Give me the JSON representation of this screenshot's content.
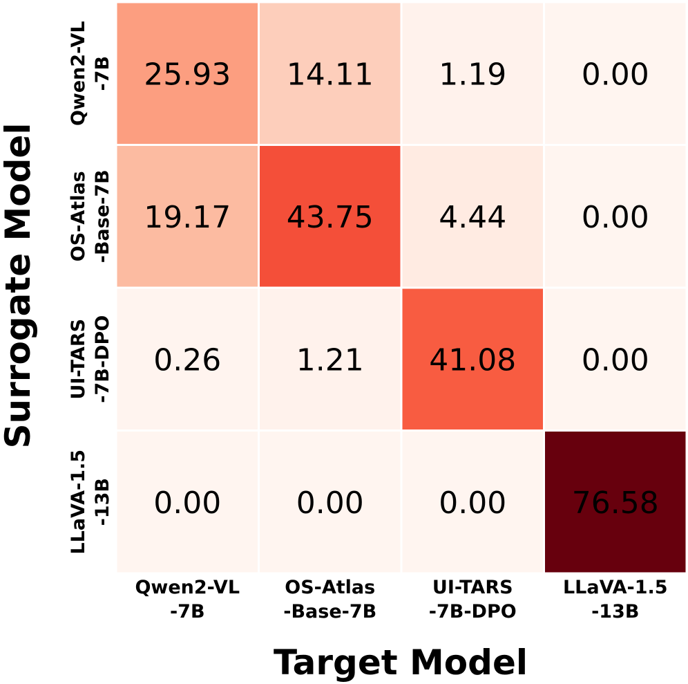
{
  "chart_data": {
    "type": "heatmap",
    "colormap": "Reds",
    "xlabel": "Target Model",
    "ylabel": "Surrogate Model",
    "x_categories": [
      [
        "Qwen2-VL",
        "-7B"
      ],
      [
        "OS-Atlas",
        "-Base-7B"
      ],
      [
        "UI-TARS",
        "-7B-DPO"
      ],
      [
        "LLaVA-1.5",
        "-13B"
      ]
    ],
    "y_categories": [
      [
        "Qwen2-VL",
        "-7B"
      ],
      [
        "OS-Atlas",
        "-Base-7B"
      ],
      [
        "UI-TARS",
        "-7B-DPO"
      ],
      [
        "LLaVA-1.5",
        "-13B"
      ]
    ],
    "values": [
      [
        25.93,
        14.11,
        1.19,
        0.0
      ],
      [
        19.17,
        43.75,
        4.44,
        0.0
      ],
      [
        0.26,
        1.21,
        41.08,
        0.0
      ],
      [
        0.0,
        0.0,
        0.0,
        76.58
      ]
    ],
    "value_range": [
      0,
      76.58
    ],
    "value_format": "2 decimals",
    "grid": false,
    "legend": "none"
  }
}
